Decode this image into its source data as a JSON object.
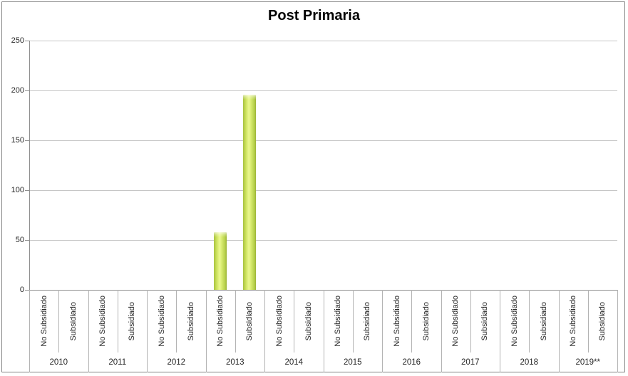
{
  "title": "Post Primaria",
  "chart_data": {
    "type": "bar",
    "title": "Post Primaria",
    "categories": [
      "2010",
      "2011",
      "2012",
      "2013",
      "2014",
      "2015",
      "2016",
      "2017",
      "2018",
      "2019**"
    ],
    "subcategories": [
      "No Subsidiado",
      "Subsidiado"
    ],
    "series": [
      {
        "year": "2010",
        "values": [
          0,
          0
        ]
      },
      {
        "year": "2011",
        "values": [
          0,
          0
        ]
      },
      {
        "year": "2012",
        "values": [
          0,
          0
        ]
      },
      {
        "year": "2013",
        "values": [
          58,
          196
        ]
      },
      {
        "year": "2014",
        "values": [
          0,
          0
        ]
      },
      {
        "year": "2015",
        "values": [
          0,
          0
        ]
      },
      {
        "year": "2016",
        "values": [
          0,
          0
        ]
      },
      {
        "year": "2017",
        "values": [
          0,
          0
        ]
      },
      {
        "year": "2018",
        "values": [
          0,
          0
        ]
      },
      {
        "year": "2019**",
        "values": [
          0,
          0
        ]
      }
    ],
    "ylim": [
      0,
      250
    ],
    "yticks": [
      0,
      50,
      100,
      150,
      200,
      250
    ],
    "grid": "horizontal-only",
    "legend": "none",
    "bar_color": "#c7dd4e"
  },
  "colors": {
    "bar_main": "#c7dd4e",
    "bar_highlight": "#ebf88e",
    "bar_edge": "#9ab233",
    "gridline": "#c6c6c6",
    "axis_line": "#8e8e8e",
    "separator": "#b3b3b3",
    "text": "#262626",
    "border": "#848484",
    "background": "#ffffff"
  }
}
